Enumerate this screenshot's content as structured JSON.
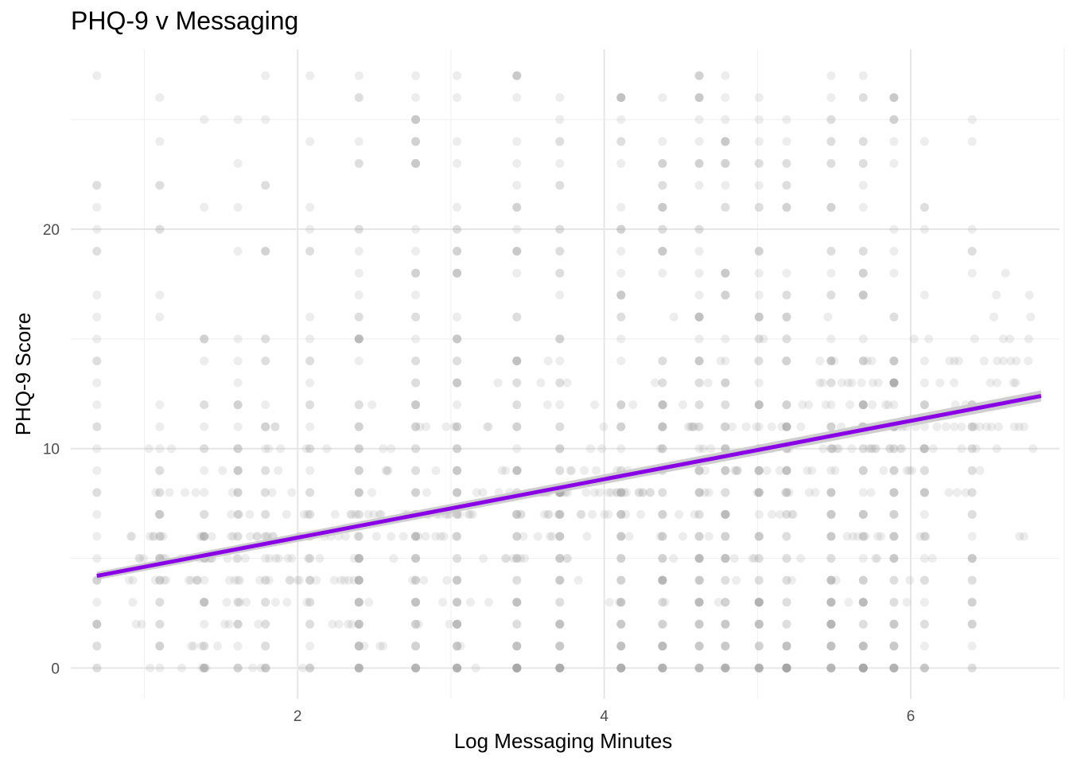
{
  "chart_data": {
    "type": "scatter",
    "title": "PHQ-9 v Messaging",
    "xlabel": "Log Messaging Minutes",
    "ylabel": "PHQ-9 Score",
    "xlim": [
      0.52,
      6.97
    ],
    "ylim": [
      -1.4,
      28.2
    ],
    "x_ticks": [
      2,
      4,
      6
    ],
    "x_tick_labels": [
      "2",
      "4",
      "6"
    ],
    "x_minor_ticks": [
      1,
      3,
      5,
      7
    ],
    "y_ticks": [
      0,
      10,
      20
    ],
    "y_tick_labels": [
      "0",
      "10",
      "20"
    ],
    "y_minor_ticks": [
      5,
      15,
      25
    ],
    "grid": true,
    "legend": "none",
    "point_color": "#a6a6a6",
    "point_opacity": 0.2,
    "point_columns": [
      0.69,
      1.1,
      1.39,
      1.61,
      1.79,
      2.08,
      2.4,
      2.77,
      3.04,
      3.43,
      3.71,
      4.11,
      4.38,
      4.62,
      4.79,
      5.01,
      5.19,
      5.48,
      5.69,
      5.89,
      6.09,
      6.4
    ],
    "score_range": [
      0,
      27
    ],
    "fit_line": {
      "color": "#8a00e6",
      "ribbon_color": "#c9c9c9",
      "x": [
        0.69,
        6.85
      ],
      "y": [
        4.2,
        12.4
      ]
    }
  }
}
